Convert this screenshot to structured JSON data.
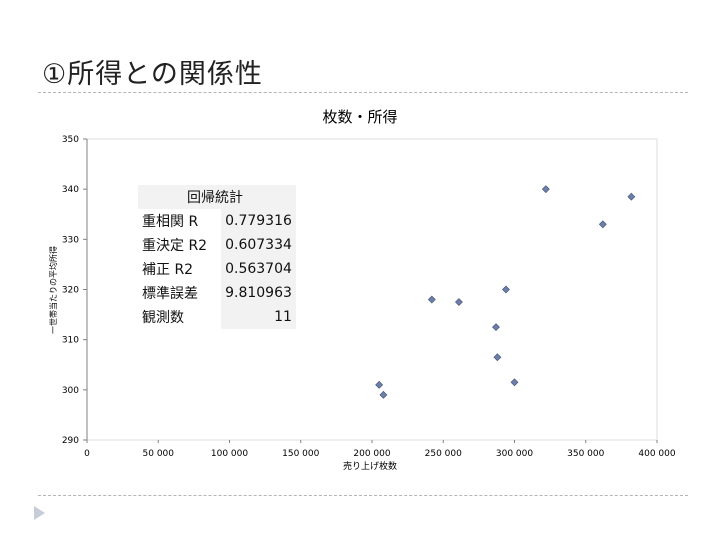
{
  "slide": {
    "title": "①所得との関係性"
  },
  "regression": {
    "title": "回帰統計",
    "rows": [
      {
        "label": "重相関 R",
        "value": "0.779316"
      },
      {
        "label": "重決定 R2",
        "value": "0.607334"
      },
      {
        "label": "補正 R2",
        "value": "0.563704"
      },
      {
        "label": "標準誤差",
        "value": "9.810963"
      },
      {
        "label": "観測数",
        "value": "11"
      }
    ]
  },
  "chart_data": {
    "type": "scatter",
    "title": "枚数・所得",
    "xlabel": "売り上げ枚数",
    "ylabel": "一世帯当たりの平均所得",
    "xlim": [
      0,
      400000
    ],
    "ylim": [
      290,
      350
    ],
    "xticks": [
      0,
      50000,
      100000,
      150000,
      200000,
      250000,
      300000,
      350000,
      400000
    ],
    "xtick_labels": [
      "0",
      "50 000",
      "100 000",
      "150 000",
      "200 000",
      "250 000",
      "300 000",
      "350 000",
      "400 000"
    ],
    "yticks": [
      290,
      300,
      310,
      320,
      330,
      340,
      350
    ],
    "ytick_labels": [
      "290",
      "300",
      "310",
      "320",
      "330",
      "340",
      "350"
    ],
    "grid": false,
    "legend": "none",
    "marker_color": "#6d7fa8",
    "points": [
      {
        "x": 205000,
        "y": 301
      },
      {
        "x": 208000,
        "y": 299
      },
      {
        "x": 242000,
        "y": 318
      },
      {
        "x": 261000,
        "y": 317.5
      },
      {
        "x": 287000,
        "y": 312.5
      },
      {
        "x": 288000,
        "y": 306.5
      },
      {
        "x": 294000,
        "y": 320
      },
      {
        "x": 300000,
        "y": 301.5
      },
      {
        "x": 322000,
        "y": 340
      },
      {
        "x": 362000,
        "y": 333
      },
      {
        "x": 382000,
        "y": 338.5
      }
    ]
  }
}
